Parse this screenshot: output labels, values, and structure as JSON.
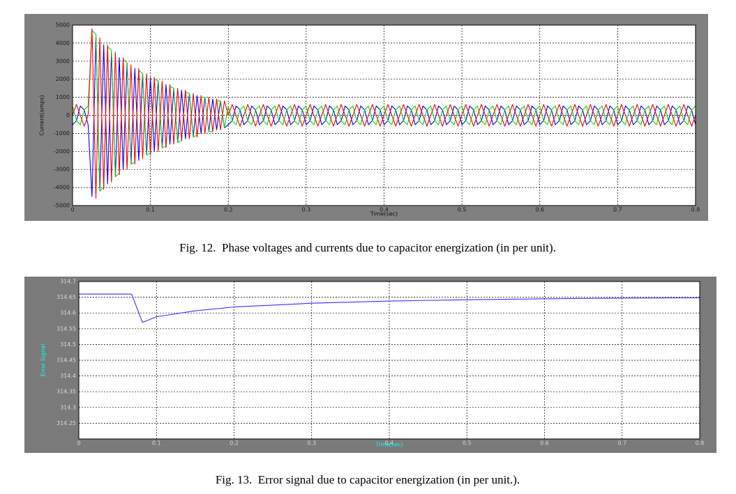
{
  "chart_data": [
    {
      "type": "line",
      "caption": "Fig. 12.  Phase voltages and currents due to capacitor energization (in per unit).",
      "x_label": "Time(sec)",
      "y_label": "Current(amps)",
      "xlim": [
        0,
        0.8
      ],
      "xticks": [
        0,
        0.1,
        0.2,
        0.3,
        0.4,
        0.5,
        0.6,
        0.7,
        0.8
      ],
      "ylim": [
        -5000,
        5000
      ],
      "yticks": [
        -5000,
        -4000,
        -3000,
        -2000,
        -1000,
        0,
        1000,
        2000,
        3000,
        4000,
        5000
      ],
      "grid": true,
      "x": [
        0,
        0.005,
        0.01,
        0.015,
        0.02,
        0.025,
        0.03,
        0.035,
        0.04,
        0.045,
        0.05,
        0.055,
        0.06,
        0.065,
        0.07,
        0.075,
        0.08,
        0.085,
        0.09,
        0.095,
        0.1,
        0.105,
        0.11,
        0.115,
        0.12,
        0.125,
        0.13,
        0.135,
        0.14,
        0.145,
        0.15,
        0.155,
        0.16,
        0.165,
        0.17,
        0.175,
        0.18,
        0.185,
        0.19,
        0.195,
        0.2,
        0.205,
        0.21,
        0.215,
        0.22,
        0.225,
        0.23,
        0.235,
        0.24,
        0.245,
        0.25,
        0.255,
        0.26,
        0.265,
        0.27,
        0.275,
        0.28,
        0.285,
        0.29,
        0.295,
        0.3,
        0.305,
        0.31,
        0.315,
        0.32,
        0.325,
        0.33,
        0.335,
        0.34,
        0.345,
        0.35,
        0.355,
        0.36,
        0.365,
        0.37,
        0.375,
        0.38,
        0.385,
        0.39,
        0.395,
        0.4,
        0.405,
        0.41,
        0.415,
        0.42,
        0.425,
        0.43,
        0.435,
        0.44,
        0.445,
        0.45,
        0.455,
        0.46,
        0.465,
        0.47,
        0.475,
        0.48,
        0.485,
        0.49,
        0.495,
        0.5,
        0.505,
        0.51,
        0.515,
        0.52,
        0.525,
        0.53,
        0.535,
        0.54,
        0.545,
        0.55,
        0.555,
        0.56,
        0.565,
        0.57,
        0.575,
        0.58,
        0.585,
        0.59,
        0.595,
        0.6,
        0.605,
        0.61,
        0.615,
        0.62,
        0.625,
        0.63,
        0.635,
        0.64,
        0.645,
        0.65,
        0.655,
        0.66,
        0.665,
        0.67,
        0.675,
        0.68,
        0.685,
        0.69,
        0.695,
        0.7,
        0.705,
        0.71,
        0.715,
        0.72,
        0.725,
        0.73,
        0.735,
        0.74,
        0.745,
        0.75,
        0.755,
        0.76,
        0.765,
        0.77,
        0.775,
        0.78,
        0.785,
        0.79,
        0.795,
        0.8
      ],
      "series": [
        {
          "color": "#0000ff",
          "values": [
            -520,
            -300,
            520,
            300,
            -520,
            -4500,
            4400,
            -4200,
            3900,
            -3800,
            3500,
            -3400,
            3200,
            -3000,
            2900,
            -2700,
            2600,
            -2500,
            2300,
            -2200,
            2100,
            -2000,
            1900,
            -1800,
            1700,
            -1600,
            1500,
            -1500,
            1400,
            -1300,
            1200,
            -1200,
            1100,
            -1000,
            1000,
            -900,
            900,
            -800,
            800,
            -700,
            -520,
            -300,
            520,
            300,
            -520,
            -300,
            520,
            300,
            -520,
            -300,
            520,
            300,
            -520,
            -300,
            520,
            300,
            -520,
            -300,
            520,
            300,
            -520,
            -300,
            520,
            300,
            -520,
            -300,
            520,
            300,
            -520,
            -300,
            520,
            300,
            -520,
            -300,
            520,
            300,
            -520,
            -300,
            520,
            300,
            -520,
            -300,
            520,
            300,
            -520,
            -300,
            520,
            300,
            -520,
            -300,
            520,
            300,
            -520,
            -300,
            520,
            300,
            -520,
            -300,
            520,
            300,
            -520,
            -300,
            520,
            300,
            -520,
            -300,
            520,
            300,
            -520,
            -300,
            520,
            300,
            -520,
            -300,
            520,
            300,
            -520,
            -300,
            520,
            300,
            -520,
            -300,
            520,
            300,
            -520,
            -300,
            520,
            300,
            -520,
            -300,
            520,
            300,
            -520,
            -300,
            520,
            300,
            -520,
            -300,
            520,
            300,
            -520,
            -300,
            520,
            300,
            -520,
            -300,
            520,
            300,
            -520,
            -300,
            520,
            300,
            -520,
            -300,
            520,
            300,
            -520,
            -300,
            520,
            300,
            -520
          ]
        },
        {
          "color": "#00e000",
          "values": [
            520,
            -300,
            -520,
            300,
            520,
            4700,
            4500,
            -4200,
            -4000,
            3800,
            3600,
            -3400,
            -3200,
            3100,
            2900,
            -2700,
            -2600,
            2500,
            2300,
            -2200,
            -2100,
            2000,
            1900,
            -1800,
            -1700,
            1600,
            1500,
            -1500,
            -1400,
            1300,
            1200,
            -1200,
            -1100,
            1000,
            1000,
            -900,
            -900,
            800,
            800,
            -700,
            520,
            -300,
            -520,
            300,
            520,
            -300,
            -520,
            300,
            520,
            -300,
            -520,
            300,
            520,
            -300,
            -520,
            300,
            520,
            -300,
            -520,
            300,
            520,
            -300,
            -520,
            300,
            520,
            -300,
            -520,
            300,
            520,
            -300,
            -520,
            300,
            520,
            -300,
            -520,
            300,
            520,
            -300,
            -520,
            300,
            520,
            -300,
            -520,
            300,
            520,
            -300,
            -520,
            300,
            520,
            -300,
            -520,
            300,
            520,
            -300,
            -520,
            300,
            520,
            -300,
            -520,
            300,
            520,
            -300,
            -520,
            300,
            520,
            -300,
            -520,
            300,
            520,
            -300,
            -520,
            300,
            520,
            -300,
            -520,
            300,
            520,
            -300,
            -520,
            300,
            520,
            -300,
            -520,
            300,
            520,
            -300,
            -520,
            300,
            520,
            -300,
            -520,
            300,
            520,
            -300,
            -520,
            300,
            520,
            -300,
            -520,
            300,
            520,
            -300,
            -520,
            300,
            520,
            -300,
            -520,
            300,
            520,
            -300,
            -520,
            300,
            520,
            -300,
            -520,
            300,
            520,
            -300,
            -520,
            300,
            520
          ]
        },
        {
          "color": "#ff0000",
          "values": [
            0,
            600,
            0,
            -600,
            0,
            4800,
            -4600,
            4300,
            -4100,
            3900,
            -3700,
            3500,
            -3300,
            3200,
            -3000,
            2800,
            -2700,
            2600,
            -2400,
            2300,
            -2200,
            2100,
            -2000,
            1900,
            -1800,
            1700,
            -1600,
            1500,
            -1400,
            1400,
            -1300,
            1200,
            -1200,
            1100,
            -1000,
            1000,
            -900,
            900,
            -800,
            800,
            0,
            600,
            0,
            -600,
            0,
            600,
            0,
            -600,
            0,
            600,
            0,
            -600,
            0,
            600,
            0,
            -600,
            0,
            600,
            0,
            -600,
            0,
            600,
            0,
            -600,
            0,
            600,
            0,
            -600,
            0,
            600,
            0,
            -600,
            0,
            600,
            0,
            -600,
            0,
            600,
            0,
            -600,
            0,
            600,
            0,
            -600,
            0,
            600,
            0,
            -600,
            0,
            600,
            0,
            -600,
            0,
            600,
            0,
            -600,
            0,
            600,
            0,
            -600,
            0,
            600,
            0,
            -600,
            0,
            600,
            0,
            -600,
            0,
            600,
            0,
            -600,
            0,
            600,
            0,
            -600,
            0,
            600,
            0,
            -600,
            0,
            600,
            0,
            -600,
            0,
            600,
            0,
            -600,
            0,
            600,
            0,
            -600,
            0,
            600,
            0,
            -600,
            0,
            600,
            0,
            -600,
            0,
            600,
            0,
            -600,
            0,
            600,
            0,
            -600,
            0,
            600,
            0,
            -600,
            0,
            600,
            0,
            -600,
            0,
            600,
            0,
            -600,
            0
          ]
        }
      ]
    },
    {
      "type": "line",
      "caption": "Fig. 13.  Error signal due to capacitor energization (in per unit.).",
      "x_label": "Time(sec)",
      "y_label": "Error Signal",
      "xlim": [
        0,
        0.8
      ],
      "xticks": [
        0,
        0.1,
        0.2,
        0.3,
        0.4,
        0.5,
        0.6,
        0.7,
        0.8
      ],
      "ylim": [
        314.2,
        314.7
      ],
      "yticks": [
        314.25,
        314.3,
        314.35,
        314.4,
        314.45,
        314.5,
        314.55,
        314.6,
        314.65,
        314.7
      ],
      "grid": true,
      "x": [
        0,
        0.068,
        0.082,
        0.1,
        0.15,
        0.2,
        0.3,
        0.4,
        0.5,
        0.6,
        0.7,
        0.8
      ],
      "series": [
        {
          "color": "#3333ff",
          "values": [
            314.66,
            314.66,
            314.57,
            314.588,
            314.607,
            314.619,
            314.631,
            314.638,
            314.642,
            314.645,
            314.647,
            314.648
          ]
        }
      ]
    }
  ]
}
